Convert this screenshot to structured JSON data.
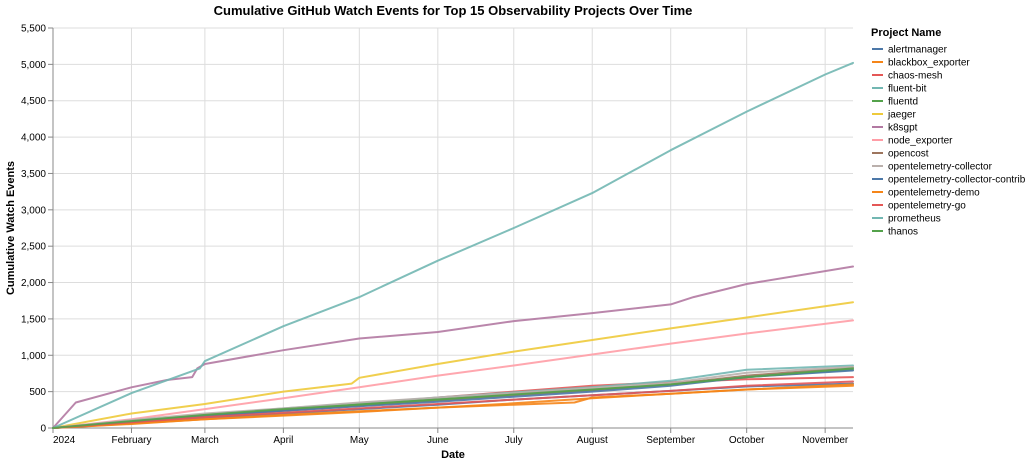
{
  "chart_data": {
    "type": "line",
    "title": "Cumulative GitHub Watch Events for Top 15 Observability Projects Over Time",
    "xlabel": "Date",
    "ylabel": "Cumulative Watch Events",
    "x_ticks": [
      {
        "label": "2024",
        "date": "2024-01-01"
      },
      {
        "label": "February",
        "date": "2024-02-01"
      },
      {
        "label": "March",
        "date": "2024-03-01"
      },
      {
        "label": "April",
        "date": "2024-04-01"
      },
      {
        "label": "May",
        "date": "2024-05-01"
      },
      {
        "label": "June",
        "date": "2024-06-01"
      },
      {
        "label": "July",
        "date": "2024-07-01"
      },
      {
        "label": "August",
        "date": "2024-08-01"
      },
      {
        "label": "September",
        "date": "2024-09-01"
      },
      {
        "label": "October",
        "date": "2024-10-01"
      },
      {
        "label": "November",
        "date": "2024-11-01"
      }
    ],
    "xlim": [
      "2024-01-01",
      "2024-11-12"
    ],
    "ylim": [
      0,
      5500
    ],
    "y_ticks": [
      0,
      500,
      1000,
      1500,
      2000,
      2500,
      3000,
      3500,
      4000,
      4500,
      5000,
      5500
    ],
    "y_tick_labels": [
      "0",
      "500",
      "1,000",
      "1,500",
      "2,000",
      "2,500",
      "3,000",
      "3,500",
      "4,000",
      "4,500",
      "5,000",
      "5,500"
    ],
    "grid": true,
    "legend": {
      "title": "Project Name",
      "placement": "right"
    },
    "series": [
      {
        "name": "alertmanager",
        "color": "#4c78a8",
        "x": [
          "2024-01-01",
          "2024-02-01",
          "2024-03-01",
          "2024-04-01",
          "2024-05-01",
          "2024-06-01",
          "2024-07-01",
          "2024-08-01",
          "2024-09-01",
          "2024-10-01",
          "2024-11-12"
        ],
        "values": [
          0,
          70,
          140,
          200,
          260,
          320,
          390,
          450,
          510,
          570,
          610
        ]
      },
      {
        "name": "blackbox_exporter",
        "color": "#f58518",
        "x": [
          "2024-01-01",
          "2024-02-01",
          "2024-03-01",
          "2024-04-01",
          "2024-05-01",
          "2024-06-01",
          "2024-07-01",
          "2024-07-25",
          "2024-08-01",
          "2024-09-01",
          "2024-10-01",
          "2024-11-12"
        ],
        "values": [
          0,
          60,
          120,
          180,
          230,
          280,
          320,
          350,
          420,
          470,
          530,
          580
        ]
      },
      {
        "name": "chaos-mesh",
        "color": "#e45756",
        "x": [
          "2024-01-01",
          "2024-02-01",
          "2024-03-01",
          "2024-04-01",
          "2024-05-01",
          "2024-06-01",
          "2024-07-01",
          "2024-08-01",
          "2024-09-01",
          "2024-10-01",
          "2024-11-12"
        ],
        "values": [
          0,
          80,
          160,
          240,
          320,
          420,
          500,
          580,
          630,
          670,
          700
        ]
      },
      {
        "name": "fluent-bit",
        "color": "#72b7b2",
        "x": [
          "2024-01-01",
          "2024-02-01",
          "2024-03-01",
          "2024-04-01",
          "2024-05-01",
          "2024-06-01",
          "2024-07-01",
          "2024-08-01",
          "2024-09-01",
          "2024-10-01",
          "2024-11-12"
        ],
        "values": [
          0,
          90,
          180,
          270,
          340,
          420,
          490,
          560,
          650,
          800,
          860
        ]
      },
      {
        "name": "fluentd",
        "color": "#54a24b",
        "x": [
          "2024-01-01",
          "2024-02-01",
          "2024-03-01",
          "2024-04-01",
          "2024-05-01",
          "2024-06-01",
          "2024-07-01",
          "2024-08-01",
          "2024-09-01",
          "2024-10-01",
          "2024-11-12"
        ],
        "values": [
          0,
          100,
          170,
          250,
          330,
          400,
          470,
          530,
          600,
          700,
          800
        ]
      },
      {
        "name": "jaeger",
        "color": "#eeca3b",
        "x": [
          "2024-01-01",
          "2024-02-01",
          "2024-03-01",
          "2024-04-01",
          "2024-04-28",
          "2024-05-01",
          "2024-06-01",
          "2024-07-01",
          "2024-08-01",
          "2024-09-01",
          "2024-10-01",
          "2024-11-12"
        ],
        "values": [
          0,
          200,
          330,
          500,
          610,
          690,
          880,
          1050,
          1210,
          1370,
          1520,
          1730
        ]
      },
      {
        "name": "k8sgpt",
        "color": "#b279a2",
        "x": [
          "2024-01-01",
          "2024-01-10",
          "2024-02-01",
          "2024-02-15",
          "2024-02-25",
          "2024-02-27",
          "2024-03-01",
          "2024-04-01",
          "2024-05-01",
          "2024-06-01",
          "2024-07-01",
          "2024-08-01",
          "2024-09-01",
          "2024-09-10",
          "2024-10-01",
          "2024-11-12"
        ],
        "values": [
          0,
          350,
          560,
          660,
          700,
          820,
          880,
          1070,
          1230,
          1320,
          1470,
          1580,
          1700,
          1800,
          1980,
          2220
        ]
      },
      {
        "name": "node_exporter",
        "color": "#ff9da6",
        "x": [
          "2024-01-01",
          "2024-02-01",
          "2024-03-01",
          "2024-04-01",
          "2024-05-01",
          "2024-06-01",
          "2024-07-01",
          "2024-08-01",
          "2024-09-01",
          "2024-10-01",
          "2024-11-12"
        ],
        "values": [
          0,
          120,
          260,
          410,
          560,
          720,
          860,
          1010,
          1160,
          1300,
          1480
        ]
      },
      {
        "name": "opencost",
        "color": "#9d755d",
        "x": [
          "2024-01-01",
          "2024-02-01",
          "2024-03-01",
          "2024-04-01",
          "2024-05-01",
          "2024-06-01",
          "2024-07-01",
          "2024-08-01",
          "2024-09-01",
          "2024-10-01",
          "2024-11-12"
        ],
        "values": [
          0,
          90,
          170,
          240,
          310,
          380,
          450,
          520,
          600,
          720,
          830
        ]
      },
      {
        "name": "opentelemetry-collector",
        "color": "#bab0ac",
        "x": [
          "2024-01-01",
          "2024-02-01",
          "2024-03-01",
          "2024-04-01",
          "2024-05-01",
          "2024-06-01",
          "2024-07-01",
          "2024-08-01",
          "2024-09-01",
          "2024-10-01",
          "2024-11-12"
        ],
        "values": [
          0,
          110,
          200,
          270,
          350,
          420,
          480,
          550,
          620,
          760,
          840
        ]
      },
      {
        "name": "opentelemetry-collector-contrib",
        "color": "#4c78a8",
        "x": [
          "2024-01-01",
          "2024-02-01",
          "2024-03-01",
          "2024-04-01",
          "2024-05-01",
          "2024-06-01",
          "2024-07-01",
          "2024-08-01",
          "2024-09-01",
          "2024-10-01",
          "2024-11-12"
        ],
        "values": [
          0,
          85,
          165,
          235,
          300,
          360,
          430,
          500,
          580,
          700,
          790
        ]
      },
      {
        "name": "opentelemetry-demo",
        "color": "#f58518",
        "x": [
          "2024-01-01",
          "2024-02-01",
          "2024-03-01",
          "2024-04-01",
          "2024-05-01",
          "2024-06-01",
          "2024-07-01",
          "2024-08-01",
          "2024-09-01",
          "2024-10-01",
          "2024-11-12"
        ],
        "values": [
          0,
          55,
          120,
          170,
          220,
          280,
          340,
          410,
          470,
          530,
          600
        ]
      },
      {
        "name": "opentelemetry-go",
        "color": "#e45756",
        "x": [
          "2024-01-01",
          "2024-02-01",
          "2024-03-01",
          "2024-04-01",
          "2024-05-01",
          "2024-06-01",
          "2024-07-01",
          "2024-08-01",
          "2024-09-01",
          "2024-10-01",
          "2024-11-12"
        ],
        "values": [
          0,
          80,
          150,
          210,
          270,
          330,
          390,
          450,
          510,
          580,
          640
        ]
      },
      {
        "name": "prometheus",
        "color": "#72b7b2",
        "x": [
          "2024-01-01",
          "2024-02-01",
          "2024-02-28",
          "2024-03-01",
          "2024-04-01",
          "2024-05-01",
          "2024-06-01",
          "2024-07-01",
          "2024-08-01",
          "2024-09-01",
          "2024-10-01",
          "2024-11-01",
          "2024-11-12"
        ],
        "values": [
          0,
          480,
          820,
          920,
          1400,
          1800,
          2300,
          2750,
          3230,
          3820,
          4350,
          4860,
          5020
        ]
      },
      {
        "name": "thanos",
        "color": "#54a24b",
        "x": [
          "2024-01-01",
          "2024-02-01",
          "2024-03-01",
          "2024-04-01",
          "2024-05-01",
          "2024-06-01",
          "2024-07-01",
          "2024-08-01",
          "2024-09-01",
          "2024-10-01",
          "2024-11-12"
        ],
        "values": [
          0,
          95,
          180,
          260,
          320,
          390,
          460,
          530,
          600,
          700,
          820
        ]
      }
    ]
  }
}
